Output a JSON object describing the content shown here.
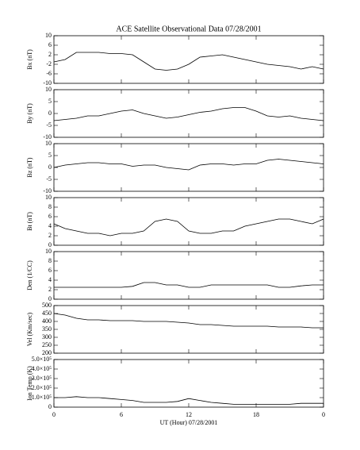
{
  "chart_data": [
    {
      "type": "line",
      "title": "ACE Satellite Observational Data   07/28/2001",
      "ylabel": "Bx (nT)",
      "color": "#000000",
      "x": [
        0,
        1,
        2,
        3,
        4,
        5,
        6,
        7,
        8,
        9,
        10,
        11,
        12,
        13,
        14,
        15,
        16,
        17,
        18,
        19,
        20,
        21,
        22,
        23,
        24
      ],
      "values": [
        -1,
        0,
        3,
        3,
        3,
        2.5,
        2.5,
        2,
        -1,
        -4,
        -4.5,
        -4,
        -2,
        1,
        1.5,
        2,
        1,
        0,
        -1,
        -2,
        -2.5,
        -3,
        -4,
        -3,
        -4
      ],
      "xlim": [
        0,
        24
      ],
      "xticks": [
        0,
        6,
        12,
        18,
        {
          "value": 24,
          "label": "0"
        }
      ],
      "ylim": [
        -10,
        10
      ],
      "yticks": [
        10,
        6,
        2,
        -2,
        -6,
        -10
      ]
    },
    {
      "type": "line",
      "ylabel": "By (nT)",
      "color": "#000000",
      "x": [
        0,
        1,
        2,
        3,
        4,
        5,
        6,
        7,
        8,
        9,
        10,
        11,
        12,
        13,
        14,
        15,
        16,
        17,
        18,
        19,
        20,
        21,
        22,
        23,
        24
      ],
      "values": [
        -3,
        -2.5,
        -2,
        -1,
        -1,
        0,
        1,
        1.5,
        0,
        -1,
        -2,
        -1.5,
        -0.5,
        0.5,
        1,
        2,
        2.5,
        2.5,
        1,
        -1,
        -1.5,
        -1,
        -2,
        -2.5,
        -3
      ],
      "xlim": [
        0,
        24
      ],
      "xticks": [
        0,
        6,
        12,
        18,
        {
          "value": 24,
          "label": "0"
        }
      ],
      "ylim": [
        -10,
        10
      ],
      "yticks": [
        10,
        5,
        0,
        -5,
        -10
      ]
    },
    {
      "type": "line",
      "ylabel": "Bz (nT)",
      "color": "#000000",
      "x": [
        0,
        1,
        2,
        3,
        4,
        5,
        6,
        7,
        8,
        9,
        10,
        11,
        12,
        13,
        14,
        15,
        16,
        17,
        18,
        19,
        20,
        21,
        22,
        23,
        24
      ],
      "values": [
        0,
        1,
        1.5,
        2,
        2,
        1.5,
        1.5,
        0.5,
        1,
        1,
        0,
        -0.5,
        -1,
        1,
        1.5,
        1.5,
        1,
        1.5,
        1.5,
        3,
        3.5,
        3,
        2.5,
        2,
        1.5
      ],
      "xlim": [
        0,
        24
      ],
      "xticks": [
        0,
        6,
        12,
        18,
        {
          "value": 24,
          "label": "0"
        }
      ],
      "ylim": [
        -10,
        10
      ],
      "yticks": [
        10,
        5,
        0,
        -5,
        -10
      ]
    },
    {
      "type": "line",
      "ylabel": "Bt (nT)",
      "color": "#000000",
      "x": [
        0,
        1,
        2,
        3,
        4,
        5,
        6,
        7,
        8,
        9,
        10,
        11,
        12,
        13,
        14,
        15,
        16,
        17,
        18,
        19,
        20,
        21,
        22,
        23,
        24
      ],
      "values": [
        4.5,
        3.5,
        3,
        2.5,
        2.5,
        2,
        2.5,
        2.5,
        3,
        5,
        5.5,
        5,
        3,
        2.5,
        2.5,
        3,
        3,
        4,
        4.5,
        5,
        5.5,
        5.5,
        5,
        4.5,
        5.5
      ],
      "xlim": [
        0,
        24
      ],
      "xticks": [
        0,
        6,
        12,
        18,
        {
          "value": 24,
          "label": "0"
        }
      ],
      "ylim": [
        0,
        10
      ],
      "yticks": [
        10,
        8,
        6,
        4,
        2,
        0
      ]
    },
    {
      "type": "line",
      "ylabel": "Den (1/CC)",
      "color": "#000000",
      "x": [
        0,
        1,
        2,
        3,
        4,
        5,
        6,
        7,
        8,
        9,
        10,
        11,
        12,
        13,
        14,
        15,
        16,
        17,
        18,
        19,
        20,
        21,
        22,
        23,
        24
      ],
      "values": [
        2.5,
        2.5,
        2.5,
        2.5,
        2.5,
        2.5,
        2.5,
        2.7,
        3.5,
        3.5,
        3,
        3,
        2.5,
        2.5,
        3,
        3,
        3,
        3,
        3,
        3,
        2.5,
        2.5,
        2.8,
        3,
        3
      ],
      "xlim": [
        0,
        24
      ],
      "xticks": [
        0,
        6,
        12,
        18,
        {
          "value": 24,
          "label": "0"
        }
      ],
      "ylim": [
        0,
        10
      ],
      "yticks": [
        10,
        8,
        6,
        4,
        2,
        0
      ]
    },
    {
      "type": "line",
      "ylabel": "Vel (Km/sec)",
      "color": "#000000",
      "x": [
        0,
        1,
        2,
        3,
        4,
        5,
        6,
        7,
        8,
        9,
        10,
        11,
        12,
        13,
        14,
        15,
        16,
        17,
        18,
        19,
        20,
        21,
        22,
        23,
        24
      ],
      "values": [
        450,
        440,
        420,
        410,
        410,
        405,
        405,
        405,
        400,
        400,
        400,
        395,
        390,
        380,
        380,
        375,
        370,
        370,
        370,
        370,
        365,
        365,
        365,
        360,
        360
      ],
      "xlim": [
        0,
        24
      ],
      "xticks": [
        0,
        6,
        12,
        18,
        {
          "value": 24,
          "label": "0"
        }
      ],
      "ylim": [
        200,
        500
      ],
      "yticks": [
        500,
        450,
        400,
        350,
        300,
        250,
        200
      ]
    },
    {
      "type": "line",
      "ylabel": "Ion Temp (K)",
      "xlabel": "UT (Hour)   07/28/2001",
      "color": "#000000",
      "x": [
        0,
        1,
        2,
        3,
        4,
        5,
        6,
        7,
        8,
        9,
        10,
        11,
        12,
        13,
        14,
        15,
        16,
        17,
        18,
        19,
        20,
        21,
        22,
        23,
        24
      ],
      "values": [
        100000,
        100000,
        110000,
        100000,
        100000,
        90000,
        80000,
        70000,
        50000,
        50000,
        50000,
        60000,
        90000,
        70000,
        50000,
        40000,
        30000,
        30000,
        30000,
        30000,
        30000,
        30000,
        40000,
        40000,
        40000
      ],
      "xlim": [
        0,
        24
      ],
      "xticks": [
        0,
        6,
        12,
        18,
        {
          "value": 24,
          "label": "0"
        }
      ],
      "ylim": [
        0,
        500000
      ],
      "yticks": [
        {
          "value": 500000,
          "label": "5.0×10⁵"
        },
        {
          "value": 400000,
          "label": "4.0×10⁵"
        },
        {
          "value": 300000,
          "label": "3.0×10⁵"
        },
        {
          "value": 200000,
          "label": "2.0×10⁵"
        },
        {
          "value": 100000,
          "label": "1.0×10⁵"
        },
        0
      ]
    }
  ]
}
